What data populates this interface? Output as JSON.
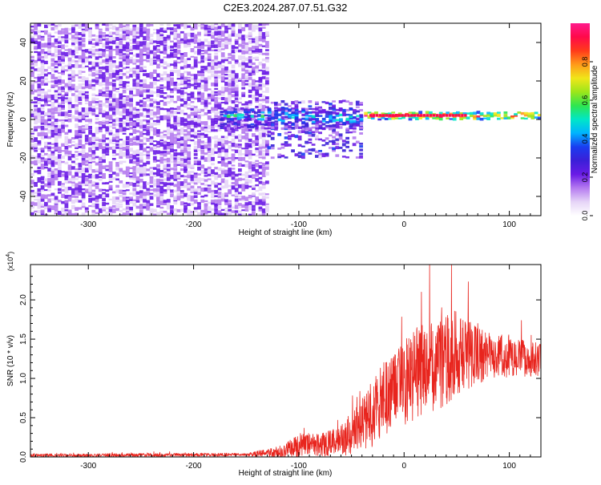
{
  "title": "C2E3.2024.287.07.51.G32",
  "colorbar": {
    "label": "Normalized spectral amplitude",
    "ticks": [
      "0.0",
      "0.2",
      "0.4",
      "0.6",
      "0.8"
    ],
    "tick_values": [
      0.0,
      0.2,
      0.4,
      0.6,
      0.8
    ],
    "range": [
      0,
      1
    ],
    "colors": [
      "#ffffff",
      "#e6d5f7",
      "#b57bf0",
      "#6a1be6",
      "#3b1fd8",
      "#1a3cf0",
      "#00b3ff",
      "#00e6c8",
      "#2ee650",
      "#9ce61a",
      "#f0e619",
      "#ff9a1a",
      "#ff3b1a",
      "#ff0a4a",
      "#ff1a8c"
    ]
  },
  "chart_data": [
    {
      "type": "heatmap",
      "name": "spectrogram",
      "xlabel": "Height of straight line (km)",
      "ylabel": "Frequency (Hz)",
      "xlim": [
        -355,
        130
      ],
      "ylim": [
        -50,
        50
      ],
      "xticks": [
        -300,
        -200,
        -100,
        0,
        100
      ],
      "xtick_labels": [
        "-300",
        "-200",
        "-100",
        "0",
        "100"
      ],
      "yticks": [
        -40,
        -20,
        0,
        20,
        40
      ],
      "ytick_labels": [
        "-40",
        "-20",
        "0",
        "20",
        "40"
      ],
      "regions": [
        {
          "name": "broadband noise",
          "x": [
            -355,
            -130
          ],
          "y": [
            -50,
            50
          ],
          "amplitude": [
            0.05,
            0.25
          ]
        },
        {
          "name": "transition scatter",
          "x": [
            -130,
            -38
          ],
          "y": [
            -20,
            10
          ],
          "amplitude": [
            0.1,
            0.35
          ]
        },
        {
          "name": "band onset",
          "x": [
            -175,
            -38
          ],
          "y": [
            -5,
            6
          ],
          "amplitude": [
            0.2,
            0.5
          ],
          "center_hz": 1.5
        },
        {
          "name": "signal band",
          "x": [
            -38,
            130
          ],
          "y": [
            0,
            4
          ],
          "amplitude": [
            0.5,
            0.95
          ],
          "center_hz": 2.0
        }
      ]
    },
    {
      "type": "line",
      "name": "snr",
      "xlabel": "Height of straight line (km)",
      "ylabel": "SNR (10 * v/v)",
      "y_multiplier": "(x10",
      "y_multiplier_exp": "4",
      "y_multiplier_close": ")",
      "color": "#e8251e",
      "xlim": [
        -355,
        130
      ],
      "ylim": [
        0,
        2.45
      ],
      "xticks": [
        -300,
        -200,
        -100,
        0,
        100
      ],
      "xtick_labels": [
        "-300",
        "-200",
        "-100",
        "0",
        "100"
      ],
      "yticks": [
        0.0,
        0.5,
        1.0,
        1.5,
        2.0
      ],
      "ytick_labels": [
        "0.0",
        "0.5",
        "1.0",
        "1.5",
        "2.0"
      ],
      "envelope": [
        {
          "x": -355,
          "mean": 0.02,
          "spread": 0.02
        },
        {
          "x": -150,
          "mean": 0.03,
          "spread": 0.02
        },
        {
          "x": -115,
          "mean": 0.07,
          "spread": 0.08
        },
        {
          "x": -100,
          "mean": 0.15,
          "spread": 0.15
        },
        {
          "x": -80,
          "mean": 0.16,
          "spread": 0.15
        },
        {
          "x": -60,
          "mean": 0.2,
          "spread": 0.2
        },
        {
          "x": -40,
          "mean": 0.4,
          "spread": 0.35
        },
        {
          "x": -20,
          "mean": 0.7,
          "spread": 0.5
        },
        {
          "x": 0,
          "mean": 0.95,
          "spread": 0.55
        },
        {
          "x": 20,
          "mean": 1.15,
          "spread": 0.6
        },
        {
          "x": 40,
          "mean": 1.3,
          "spread": 0.65
        },
        {
          "x": 60,
          "mean": 1.3,
          "spread": 0.45
        },
        {
          "x": 80,
          "mean": 1.3,
          "spread": 0.3
        },
        {
          "x": 100,
          "mean": 1.25,
          "spread": 0.25
        },
        {
          "x": 130,
          "mean": 1.25,
          "spread": 0.22
        }
      ],
      "peak": {
        "x": 45,
        "y": 2.45
      }
    }
  ]
}
